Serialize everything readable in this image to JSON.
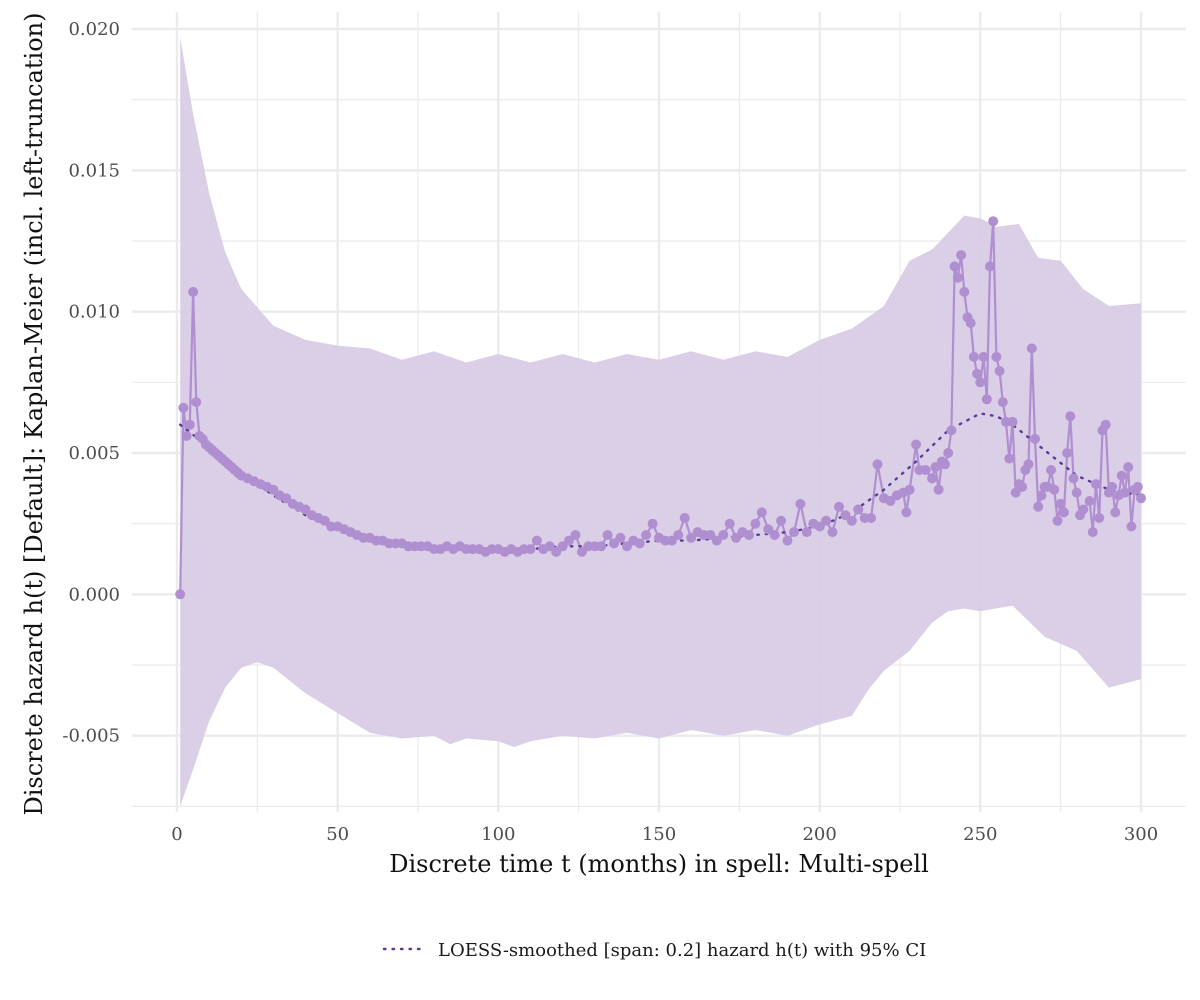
{
  "chart_data": {
    "type": "line",
    "xlabel": "Discrete time t (months) in spell: Multi-spell",
    "ylabel": "Discrete hazard  h(t) [Default]:  Kaplan-Meier (incl. left-truncation)",
    "xlim": [
      -14,
      314
    ],
    "ylim": [
      -0.0077,
      0.0206
    ],
    "x_ticks": [
      0,
      50,
      100,
      150,
      200,
      250,
      300
    ],
    "x_tick_labels": [
      "0",
      "50",
      "100",
      "150",
      "200",
      "250",
      "300"
    ],
    "y_ticks": [
      -0.005,
      0.0,
      0.005,
      0.01,
      0.015,
      0.02
    ],
    "y_tick_labels": [
      "-0.005",
      "0.000",
      "0.005",
      "0.010",
      "0.015",
      "0.020"
    ],
    "grid": true,
    "legend": {
      "position": "bottom",
      "entries": [
        {
          "label": "LOESS-smoothed [span: 0.2] hazard h(t) with 95% CI",
          "style": "dotted-line"
        }
      ]
    },
    "colors": {
      "band_fill": "#d9cce6",
      "points": "#b08fd0",
      "line": "#b08fd0",
      "smooth": "#5b3a99",
      "grid": "#ebebeb"
    },
    "series": [
      {
        "type": "line-with-points",
        "points": [
          [
            1,
            0.0
          ],
          [
            2,
            0.0066
          ],
          [
            3,
            0.0056
          ],
          [
            4,
            0.006
          ],
          [
            5,
            0.0107
          ],
          [
            6,
            0.0068
          ],
          [
            7,
            0.0056
          ],
          [
            8,
            0.0055
          ],
          [
            9,
            0.0053
          ],
          [
            10,
            0.0052
          ],
          [
            11,
            0.0051
          ],
          [
            12,
            0.005
          ],
          [
            13,
            0.0049
          ],
          [
            14,
            0.0048
          ],
          [
            15,
            0.0047
          ],
          [
            16,
            0.0046
          ],
          [
            17,
            0.0045
          ],
          [
            18,
            0.0044
          ],
          [
            19,
            0.0043
          ],
          [
            20,
            0.0042
          ],
          [
            22,
            0.0041
          ],
          [
            24,
            0.004
          ],
          [
            26,
            0.0039
          ],
          [
            28,
            0.0038
          ],
          [
            30,
            0.0037
          ],
          [
            32,
            0.0035
          ],
          [
            34,
            0.0034
          ],
          [
            36,
            0.0032
          ],
          [
            38,
            0.0031
          ],
          [
            40,
            0.003
          ],
          [
            42,
            0.0028
          ],
          [
            44,
            0.0027
          ],
          [
            46,
            0.0026
          ],
          [
            48,
            0.0024
          ],
          [
            50,
            0.0024
          ],
          [
            52,
            0.0023
          ],
          [
            54,
            0.0022
          ],
          [
            56,
            0.0021
          ],
          [
            58,
            0.002
          ],
          [
            60,
            0.002
          ],
          [
            62,
            0.0019
          ],
          [
            64,
            0.0019
          ],
          [
            66,
            0.0018
          ],
          [
            68,
            0.0018
          ],
          [
            70,
            0.0018
          ],
          [
            72,
            0.0017
          ],
          [
            74,
            0.0017
          ],
          [
            76,
            0.0017
          ],
          [
            78,
            0.0017
          ],
          [
            80,
            0.0016
          ],
          [
            82,
            0.0016
          ],
          [
            84,
            0.0017
          ],
          [
            86,
            0.0016
          ],
          [
            88,
            0.0017
          ],
          [
            90,
            0.0016
          ],
          [
            92,
            0.0016
          ],
          [
            94,
            0.0016
          ],
          [
            96,
            0.0015
          ],
          [
            98,
            0.0016
          ],
          [
            100,
            0.0016
          ],
          [
            102,
            0.0015
          ],
          [
            104,
            0.0016
          ],
          [
            106,
            0.0015
          ],
          [
            108,
            0.0016
          ],
          [
            110,
            0.0016
          ],
          [
            112,
            0.0019
          ],
          [
            114,
            0.0016
          ],
          [
            116,
            0.0017
          ],
          [
            118,
            0.0015
          ],
          [
            120,
            0.0017
          ],
          [
            122,
            0.0019
          ],
          [
            124,
            0.0021
          ],
          [
            126,
            0.0015
          ],
          [
            128,
            0.0017
          ],
          [
            130,
            0.0017
          ],
          [
            132,
            0.0017
          ],
          [
            134,
            0.0021
          ],
          [
            136,
            0.0018
          ],
          [
            138,
            0.002
          ],
          [
            140,
            0.0017
          ],
          [
            142,
            0.0019
          ],
          [
            144,
            0.0018
          ],
          [
            146,
            0.0021
          ],
          [
            148,
            0.0025
          ],
          [
            150,
            0.002
          ],
          [
            152,
            0.0019
          ],
          [
            154,
            0.0019
          ],
          [
            156,
            0.0021
          ],
          [
            158,
            0.0027
          ],
          [
            160,
            0.002
          ],
          [
            162,
            0.0022
          ],
          [
            164,
            0.0021
          ],
          [
            166,
            0.0021
          ],
          [
            168,
            0.0019
          ],
          [
            170,
            0.0021
          ],
          [
            172,
            0.0025
          ],
          [
            174,
            0.002
          ],
          [
            176,
            0.0022
          ],
          [
            178,
            0.0021
          ],
          [
            180,
            0.0025
          ],
          [
            182,
            0.0029
          ],
          [
            184,
            0.0023
          ],
          [
            186,
            0.0021
          ],
          [
            188,
            0.0026
          ],
          [
            190,
            0.0019
          ],
          [
            192,
            0.0022
          ],
          [
            194,
            0.0032
          ],
          [
            196,
            0.0022
          ],
          [
            198,
            0.0025
          ],
          [
            200,
            0.0024
          ],
          [
            202,
            0.0026
          ],
          [
            204,
            0.0022
          ],
          [
            206,
            0.0031
          ],
          [
            208,
            0.0028
          ],
          [
            210,
            0.0026
          ],
          [
            212,
            0.003
          ],
          [
            214,
            0.0027
          ],
          [
            216,
            0.0027
          ],
          [
            218,
            0.0046
          ],
          [
            220,
            0.0034
          ],
          [
            222,
            0.0033
          ],
          [
            224,
            0.0035
          ],
          [
            226,
            0.0036
          ],
          [
            227,
            0.0029
          ],
          [
            228,
            0.0037
          ],
          [
            230,
            0.0053
          ],
          [
            231,
            0.0044
          ],
          [
            233,
            0.0044
          ],
          [
            235,
            0.0041
          ],
          [
            236,
            0.0045
          ],
          [
            237,
            0.0037
          ],
          [
            238,
            0.0047
          ],
          [
            239,
            0.0046
          ],
          [
            240,
            0.005
          ],
          [
            241,
            0.0058
          ],
          [
            242,
            0.0116
          ],
          [
            243,
            0.0112
          ],
          [
            244,
            0.012
          ],
          [
            245,
            0.0107
          ],
          [
            246,
            0.0098
          ],
          [
            247,
            0.0096
          ],
          [
            248,
            0.0084
          ],
          [
            249,
            0.0078
          ],
          [
            250,
            0.0075
          ],
          [
            251,
            0.0084
          ],
          [
            252,
            0.0069
          ],
          [
            253,
            0.0116
          ],
          [
            254,
            0.0132
          ],
          [
            255,
            0.0084
          ],
          [
            256,
            0.0079
          ],
          [
            257,
            0.0068
          ],
          [
            258,
            0.0061
          ],
          [
            259,
            0.0048
          ],
          [
            260,
            0.0061
          ],
          [
            261,
            0.0036
          ],
          [
            262,
            0.0039
          ],
          [
            263,
            0.0038
          ],
          [
            264,
            0.0044
          ],
          [
            265,
            0.0046
          ],
          [
            266,
            0.0087
          ],
          [
            267,
            0.0055
          ],
          [
            268,
            0.0031
          ],
          [
            269,
            0.0035
          ],
          [
            270,
            0.0038
          ],
          [
            271,
            0.0038
          ],
          [
            272,
            0.0044
          ],
          [
            273,
            0.0037
          ],
          [
            274,
            0.0026
          ],
          [
            275,
            0.0032
          ],
          [
            276,
            0.0029
          ],
          [
            277,
            0.005
          ],
          [
            278,
            0.0063
          ],
          [
            279,
            0.0041
          ],
          [
            280,
            0.0036
          ],
          [
            281,
            0.0028
          ],
          [
            282,
            0.003
          ],
          [
            284,
            0.0033
          ],
          [
            285,
            0.0022
          ],
          [
            286,
            0.0039
          ],
          [
            287,
            0.0027
          ],
          [
            288,
            0.0058
          ],
          [
            289,
            0.006
          ],
          [
            290,
            0.0036
          ],
          [
            291,
            0.0038
          ],
          [
            292,
            0.0029
          ],
          [
            293,
            0.0035
          ],
          [
            294,
            0.0042
          ],
          [
            295,
            0.0036
          ],
          [
            296,
            0.0045
          ],
          [
            297,
            0.0024
          ],
          [
            298,
            0.0037
          ],
          [
            299,
            0.0038
          ],
          [
            300,
            0.0034
          ]
        ]
      },
      {
        "type": "loess-smooth",
        "points": [
          [
            1,
            0.006
          ],
          [
            10,
            0.0052
          ],
          [
            20,
            0.0043
          ],
          [
            30,
            0.0035
          ],
          [
            40,
            0.0028
          ],
          [
            50,
            0.0023
          ],
          [
            60,
            0.002
          ],
          [
            70,
            0.0018
          ],
          [
            80,
            0.0017
          ],
          [
            90,
            0.0016
          ],
          [
            100,
            0.0016
          ],
          [
            110,
            0.0016
          ],
          [
            120,
            0.0017
          ],
          [
            130,
            0.0017
          ],
          [
            140,
            0.0018
          ],
          [
            150,
            0.0019
          ],
          [
            160,
            0.0019
          ],
          [
            170,
            0.002
          ],
          [
            180,
            0.0021
          ],
          [
            190,
            0.0022
          ],
          [
            200,
            0.0024
          ],
          [
            210,
            0.0029
          ],
          [
            220,
            0.0037
          ],
          [
            230,
            0.0047
          ],
          [
            240,
            0.0058
          ],
          [
            250,
            0.0064
          ],
          [
            255,
            0.0063
          ],
          [
            260,
            0.006
          ],
          [
            270,
            0.0051
          ],
          [
            280,
            0.0042
          ],
          [
            290,
            0.0037
          ],
          [
            300,
            0.0035
          ]
        ]
      },
      {
        "type": "confidence-band",
        "upper": [
          [
            1,
            0.0197
          ],
          [
            5,
            0.017
          ],
          [
            10,
            0.0142
          ],
          [
            15,
            0.0121
          ],
          [
            20,
            0.0108
          ],
          [
            30,
            0.0095
          ],
          [
            40,
            0.009
          ],
          [
            50,
            0.0088
          ],
          [
            60,
            0.0087
          ],
          [
            70,
            0.0083
          ],
          [
            80,
            0.0086
          ],
          [
            90,
            0.0082
          ],
          [
            100,
            0.0085
          ],
          [
            110,
            0.0082
          ],
          [
            120,
            0.0085
          ],
          [
            130,
            0.0082
          ],
          [
            140,
            0.0085
          ],
          [
            150,
            0.0083
          ],
          [
            160,
            0.0086
          ],
          [
            170,
            0.0083
          ],
          [
            180,
            0.0086
          ],
          [
            190,
            0.0084
          ],
          [
            200,
            0.009
          ],
          [
            210,
            0.0094
          ],
          [
            220,
            0.0102
          ],
          [
            228,
            0.0118
          ],
          [
            235,
            0.0122
          ],
          [
            245,
            0.0134
          ],
          [
            250,
            0.0133
          ],
          [
            255,
            0.013
          ],
          [
            262,
            0.0131
          ],
          [
            268,
            0.0119
          ],
          [
            275,
            0.0118
          ],
          [
            282,
            0.0108
          ],
          [
            290,
            0.0102
          ],
          [
            300,
            0.0103
          ]
        ],
        "lower": [
          [
            1,
            -0.0075
          ],
          [
            5,
            -0.0062
          ],
          [
            10,
            -0.0045
          ],
          [
            15,
            -0.0033
          ],
          [
            20,
            -0.0026
          ],
          [
            25,
            -0.0024
          ],
          [
            30,
            -0.0026
          ],
          [
            40,
            -0.0035
          ],
          [
            50,
            -0.0042
          ],
          [
            60,
            -0.0049
          ],
          [
            70,
            -0.0051
          ],
          [
            80,
            -0.005
          ],
          [
            85,
            -0.0053
          ],
          [
            90,
            -0.0051
          ],
          [
            100,
            -0.0052
          ],
          [
            105,
            -0.0054
          ],
          [
            110,
            -0.0052
          ],
          [
            120,
            -0.005
          ],
          [
            130,
            -0.0051
          ],
          [
            140,
            -0.0049
          ],
          [
            150,
            -0.0051
          ],
          [
            160,
            -0.0048
          ],
          [
            170,
            -0.005
          ],
          [
            180,
            -0.0048
          ],
          [
            190,
            -0.005
          ],
          [
            200,
            -0.0046
          ],
          [
            210,
            -0.0043
          ],
          [
            215,
            -0.0034
          ],
          [
            220,
            -0.0027
          ],
          [
            228,
            -0.002
          ],
          [
            235,
            -0.001
          ],
          [
            240,
            -0.0006
          ],
          [
            245,
            -0.0005
          ],
          [
            250,
            -0.0006
          ],
          [
            260,
            -0.0004
          ],
          [
            270,
            -0.0015
          ],
          [
            280,
            -0.002
          ],
          [
            290,
            -0.0033
          ],
          [
            300,
            -0.003
          ]
        ]
      }
    ]
  }
}
